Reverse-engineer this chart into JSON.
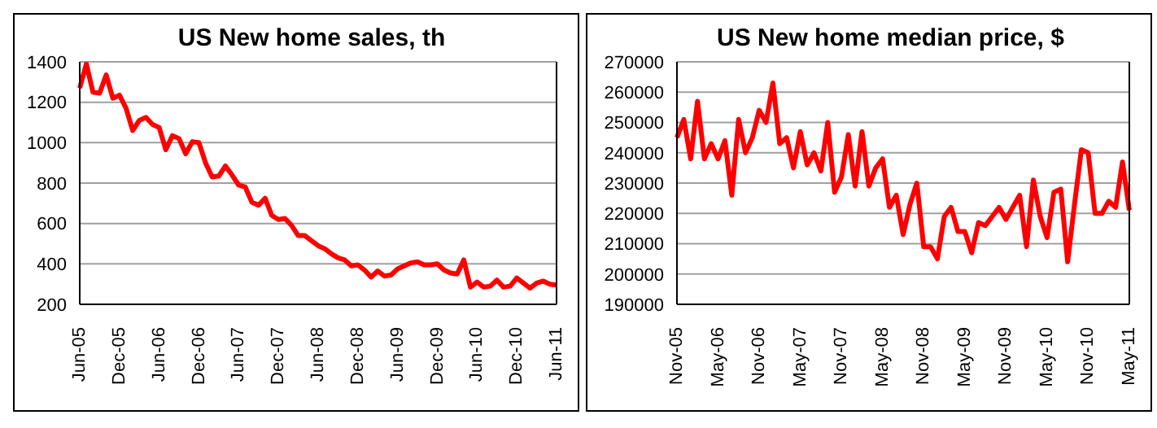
{
  "chart_data": [
    {
      "type": "line",
      "title": "US New home sales, th",
      "categories": [
        "Jun-05",
        null,
        null,
        null,
        null,
        null,
        "Dec-05",
        null,
        null,
        null,
        null,
        null,
        "Jun-06",
        null,
        null,
        null,
        null,
        null,
        "Dec-06",
        null,
        null,
        null,
        null,
        null,
        "Jun-07",
        null,
        null,
        null,
        null,
        null,
        "Dec-07",
        null,
        null,
        null,
        null,
        null,
        "Jun-08",
        null,
        null,
        null,
        null,
        null,
        "Dec-08",
        null,
        null,
        null,
        null,
        null,
        "Jun-09",
        null,
        null,
        null,
        null,
        null,
        "Dec-09",
        null,
        null,
        null,
        null,
        null,
        "Jun-10",
        null,
        null,
        null,
        null,
        null,
        "Dec-10",
        null,
        null,
        null,
        null,
        null,
        "Jun-11"
      ],
      "series": [
        {
          "color": "#ff0000",
          "values": [
            1270,
            1390,
            1250,
            1245,
            1335,
            1220,
            1235,
            1170,
            1060,
            1110,
            1125,
            1090,
            1075,
            965,
            1035,
            1020,
            945,
            1005,
            1000,
            900,
            830,
            835,
            885,
            840,
            790,
            780,
            705,
            690,
            725,
            640,
            620,
            625,
            590,
            540,
            540,
            515,
            490,
            475,
            450,
            430,
            420,
            390,
            395,
            370,
            335,
            365,
            340,
            345,
            375,
            390,
            405,
            410,
            395,
            395,
            400,
            370,
            355,
            350,
            420,
            285,
            310,
            285,
            290,
            320,
            285,
            290,
            330,
            305,
            280,
            305,
            315,
            300,
            295
          ]
        }
      ],
      "ylim": [
        200,
        1400
      ],
      "yticks": [
        200,
        400,
        600,
        800,
        1000,
        1200,
        1400
      ],
      "grid": "y",
      "marker": "none",
      "line_style": "solid",
      "legend": false
    },
    {
      "type": "line",
      "title": "US New home median price, $",
      "categories": [
        "Nov-05",
        null,
        null,
        null,
        null,
        null,
        "May-06",
        null,
        null,
        null,
        null,
        null,
        "Nov-06",
        null,
        null,
        null,
        null,
        null,
        "May-07",
        null,
        null,
        null,
        null,
        null,
        "Nov-07",
        null,
        null,
        null,
        null,
        null,
        "May-08",
        null,
        null,
        null,
        null,
        null,
        "Nov-08",
        null,
        null,
        null,
        null,
        null,
        "May-09",
        null,
        null,
        null,
        null,
        null,
        "Nov-09",
        null,
        null,
        null,
        null,
        null,
        "May-10",
        null,
        null,
        null,
        null,
        null,
        "Nov-10",
        null,
        null,
        null,
        null,
        null,
        "May-11"
      ],
      "series": [
        {
          "color": "#ff0000",
          "values": [
            245000,
            251000,
            238000,
            257000,
            238000,
            243000,
            238000,
            244000,
            226000,
            251000,
            240000,
            245000,
            254000,
            250000,
            263000,
            243000,
            245000,
            235000,
            247000,
            236000,
            240000,
            234000,
            250000,
            227000,
            232000,
            246000,
            229000,
            247000,
            229000,
            235000,
            238000,
            222000,
            226000,
            213000,
            223000,
            230000,
            209000,
            209000,
            205000,
            219000,
            222000,
            214000,
            214000,
            207000,
            217000,
            216000,
            219000,
            222000,
            218000,
            222000,
            226000,
            209000,
            231000,
            219000,
            212000,
            227000,
            228000,
            204000,
            223000,
            241000,
            240000,
            220000,
            220000,
            224000,
            222000,
            237000,
            221000
          ]
        }
      ],
      "ylim": [
        190000,
        270000
      ],
      "yticks": [
        190000,
        200000,
        210000,
        220000,
        230000,
        240000,
        250000,
        260000,
        270000
      ],
      "grid": "y",
      "marker": "none",
      "line_style": "solid",
      "legend": false
    }
  ]
}
